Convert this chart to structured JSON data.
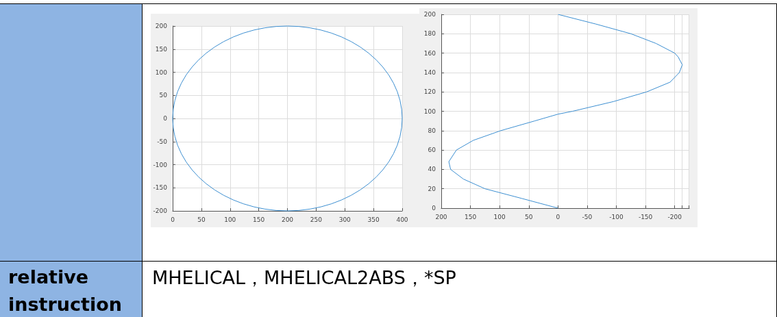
{
  "chart_data": [
    {
      "type": "line",
      "xlim": [
        0,
        400
      ],
      "ylim": [
        -200,
        200
      ],
      "xticks": [
        0,
        50,
        100,
        150,
        200,
        250,
        300,
        350,
        400
      ],
      "yticks": [
        -200,
        -150,
        -100,
        -50,
        0,
        50,
        100,
        150,
        200
      ],
      "grid": true,
      "annotations": [
        "relative instruction",
        "MHELICAL，MHELICAL2ABS，*SP"
      ]
    },
    {
      "type": "line",
      "xlim": [
        200,
        -225
      ],
      "ylim": [
        0,
        200
      ],
      "xticks": [
        200,
        150,
        100,
        50,
        0,
        -50,
        -100,
        -150,
        -200,
        {
          "value": -212,
          "label": null
        },
        {
          "value": -224,
          "label": null
        }
      ],
      "yticks": [
        0,
        20,
        40,
        60,
        80,
        100,
        120,
        140,
        160,
        180,
        200
      ],
      "grid": true,
      "marker": "none",
      "series": [
        {
          "color": "#3d8fd1",
          "x": [
            0,
            62,
            125,
            162,
            184,
            187,
            174,
            145,
            98,
            40,
            0,
            -25,
            -95,
            -152,
            -192,
            -208,
            -213,
            -206,
            -200,
            -168,
            -125,
            -65,
            0
          ],
          "values": [
            0,
            10,
            20,
            30,
            40,
            48,
            60,
            70,
            80,
            90,
            97,
            100,
            110,
            120,
            130,
            140,
            148,
            156,
            160,
            170,
            180,
            190,
            200
          ]
        }
      ]
    }
  ]
}
